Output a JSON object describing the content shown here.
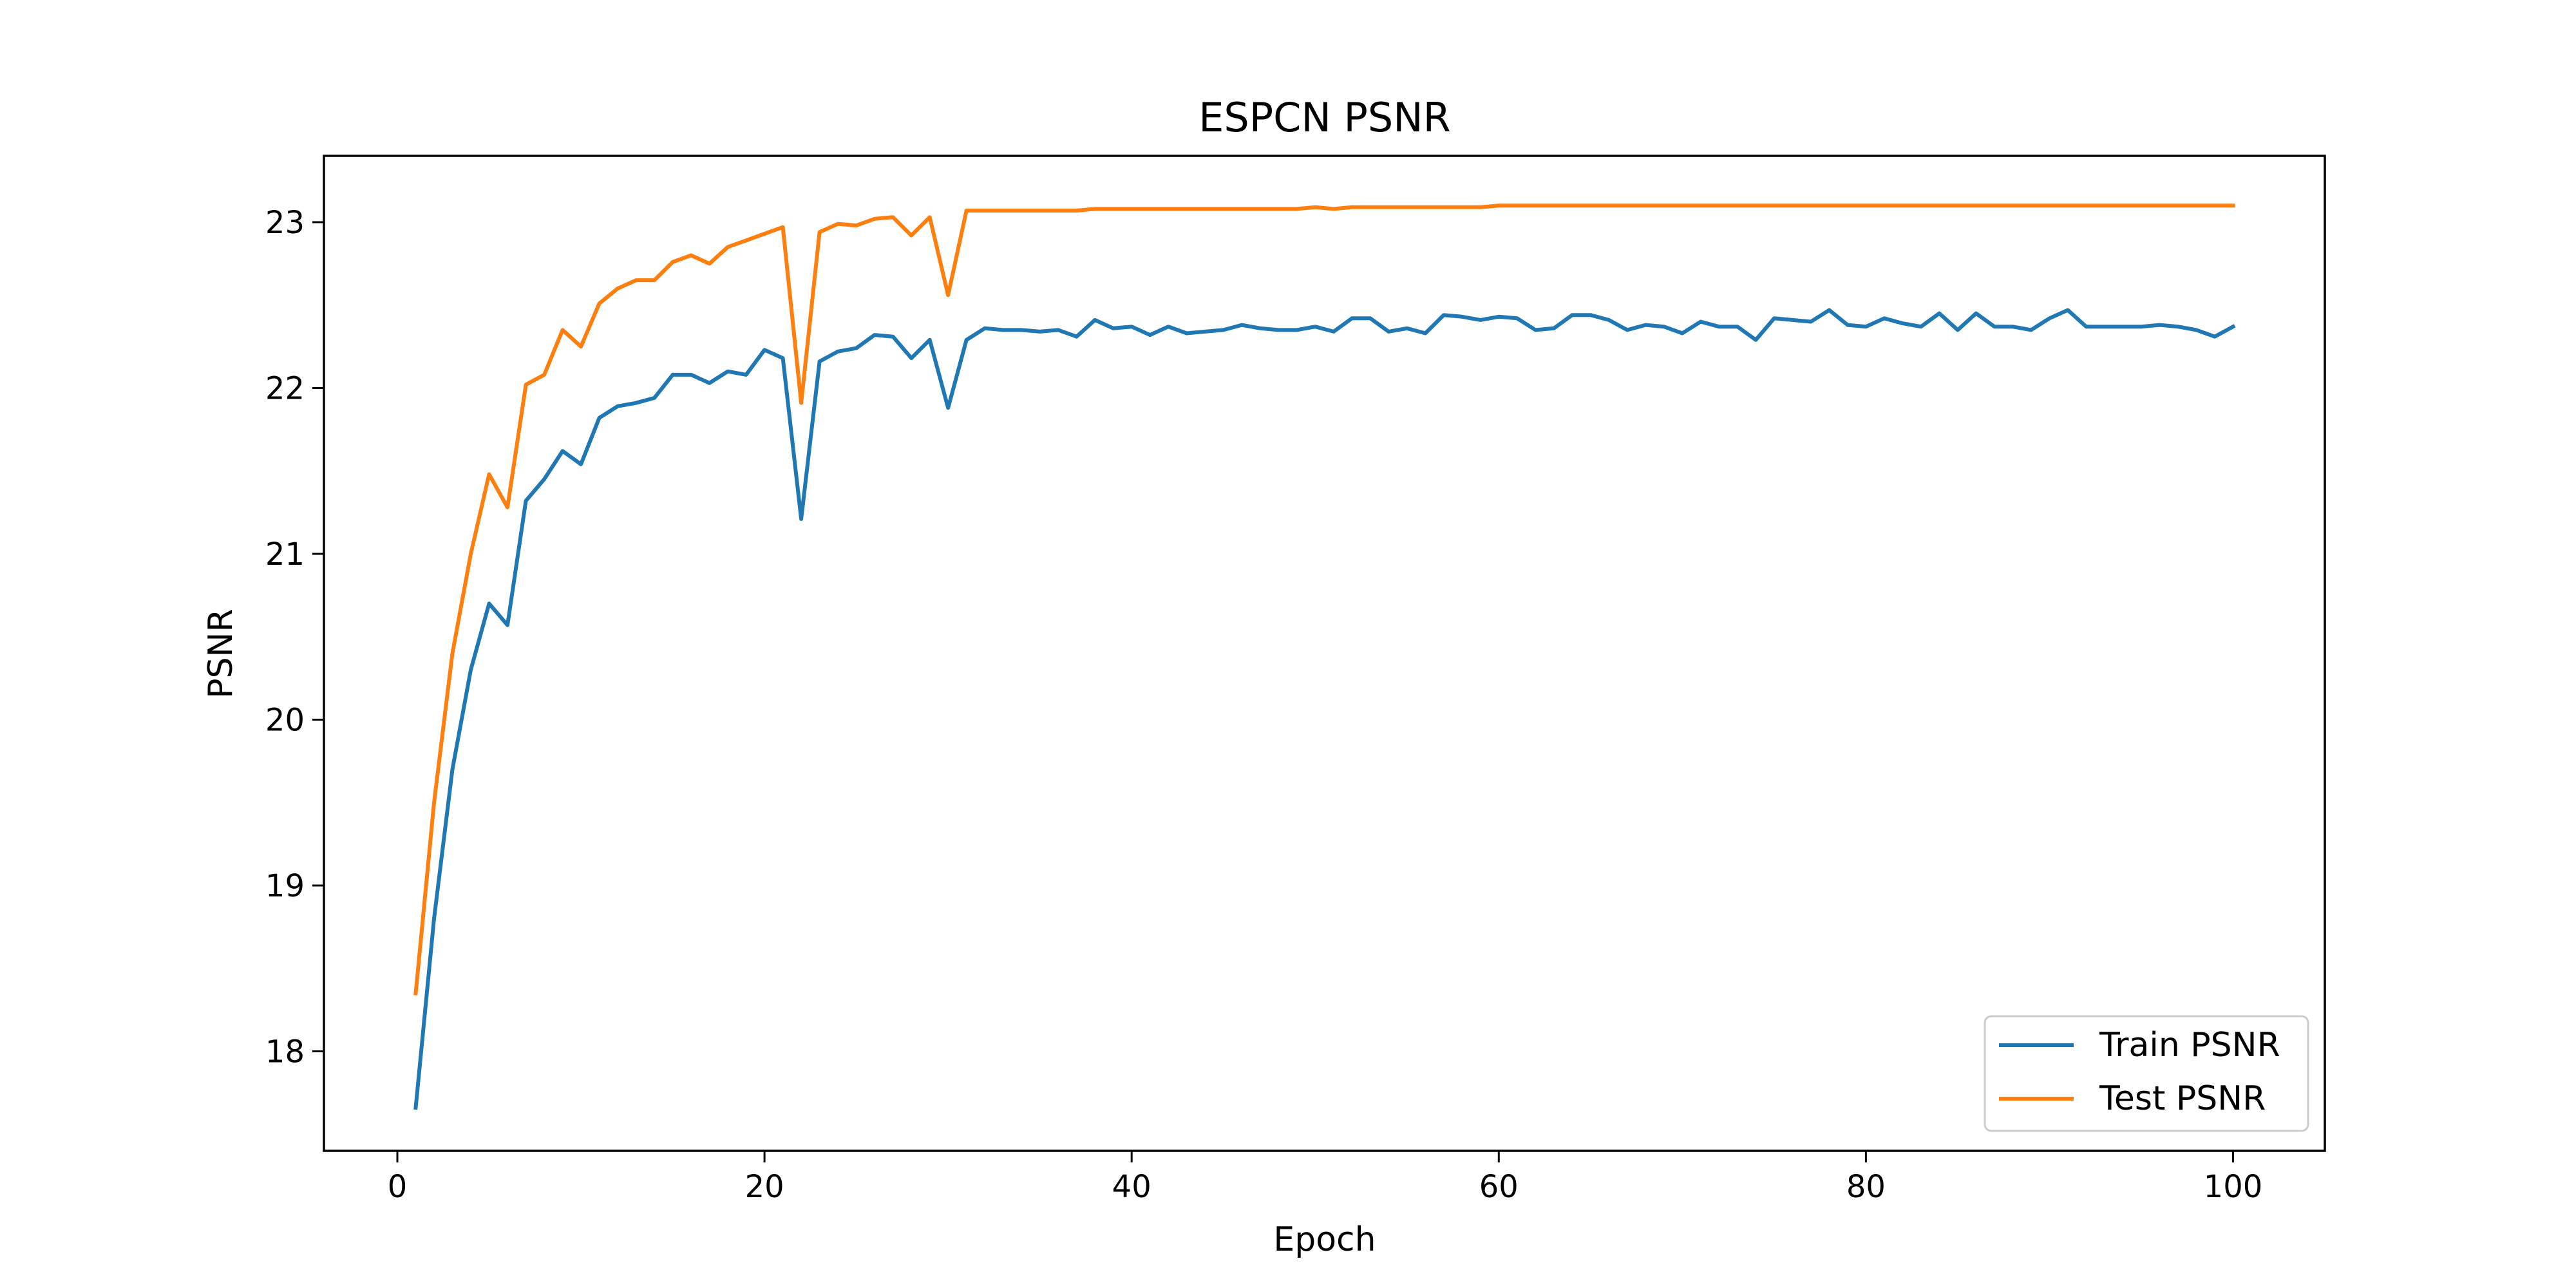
{
  "chart_data": {
    "type": "line",
    "title": "ESPCN PSNR",
    "xlabel": "Epoch",
    "ylabel": "PSNR",
    "xlim": [
      -4,
      105
    ],
    "ylim": [
      17.4,
      23.4
    ],
    "xticks": [
      0,
      20,
      40,
      60,
      80,
      100
    ],
    "yticks": [
      18,
      19,
      20,
      21,
      22,
      23
    ],
    "grid": false,
    "legend_position": "lower-right",
    "series": [
      {
        "name": "Train PSNR",
        "color": "#1f77b4",
        "x": [
          1,
          2,
          3,
          4,
          5,
          6,
          7,
          8,
          9,
          10,
          11,
          12,
          13,
          14,
          15,
          16,
          17,
          18,
          19,
          20,
          21,
          22,
          23,
          24,
          25,
          26,
          27,
          28,
          29,
          30,
          31,
          32,
          33,
          34,
          35,
          36,
          37,
          38,
          39,
          40,
          41,
          42,
          43,
          44,
          45,
          46,
          47,
          48,
          49,
          50,
          51,
          52,
          53,
          54,
          55,
          56,
          57,
          58,
          59,
          60,
          61,
          62,
          63,
          64,
          65,
          66,
          67,
          68,
          69,
          70,
          71,
          72,
          73,
          74,
          75,
          76,
          77,
          78,
          79,
          80,
          81,
          82,
          83,
          84,
          85,
          86,
          87,
          88,
          89,
          90,
          91,
          92,
          93,
          94,
          95,
          96,
          97,
          98,
          99,
          100
        ],
        "values": [
          17.66,
          18.8,
          19.7,
          20.3,
          20.7,
          20.57,
          21.32,
          21.45,
          21.62,
          21.54,
          21.82,
          21.89,
          21.91,
          21.94,
          22.08,
          22.08,
          22.03,
          22.1,
          22.08,
          22.23,
          22.18,
          21.21,
          22.16,
          22.22,
          22.24,
          22.32,
          22.31,
          22.18,
          22.29,
          21.88,
          22.29,
          22.36,
          22.35,
          22.35,
          22.34,
          22.35,
          22.31,
          22.41,
          22.36,
          22.37,
          22.32,
          22.37,
          22.33,
          22.34,
          22.35,
          22.38,
          22.36,
          22.35,
          22.35,
          22.37,
          22.34,
          22.42,
          22.42,
          22.34,
          22.36,
          22.33,
          22.44,
          22.43,
          22.41,
          22.43,
          22.42,
          22.35,
          22.36,
          22.44,
          22.44,
          22.41,
          22.35,
          22.38,
          22.37,
          22.33,
          22.4,
          22.37,
          22.37,
          22.29,
          22.42,
          22.41,
          22.4,
          22.47,
          22.38,
          22.37,
          22.42,
          22.39,
          22.37,
          22.45,
          22.35,
          22.45,
          22.37,
          22.37,
          22.35,
          22.42,
          22.47,
          22.37,
          22.37,
          22.37,
          22.37,
          22.38,
          22.37,
          22.35,
          22.31,
          22.37
        ]
      },
      {
        "name": "Test PSNR",
        "color": "#ff7f0e",
        "x": [
          1,
          2,
          3,
          4,
          5,
          6,
          7,
          8,
          9,
          10,
          11,
          12,
          13,
          14,
          15,
          16,
          17,
          18,
          19,
          20,
          21,
          22,
          23,
          24,
          25,
          26,
          27,
          28,
          29,
          30,
          31,
          32,
          33,
          34,
          35,
          36,
          37,
          38,
          39,
          40,
          41,
          42,
          43,
          44,
          45,
          46,
          47,
          48,
          49,
          50,
          51,
          52,
          53,
          54,
          55,
          56,
          57,
          58,
          59,
          60,
          61,
          62,
          63,
          64,
          65,
          66,
          67,
          68,
          69,
          70,
          71,
          72,
          73,
          74,
          75,
          76,
          77,
          78,
          79,
          80,
          81,
          82,
          83,
          84,
          85,
          86,
          87,
          88,
          89,
          90,
          91,
          92,
          93,
          94,
          95,
          96,
          97,
          98,
          99,
          100
        ],
        "values": [
          18.35,
          19.5,
          20.4,
          21.0,
          21.48,
          21.28,
          22.02,
          22.08,
          22.35,
          22.25,
          22.51,
          22.6,
          22.65,
          22.65,
          22.76,
          22.8,
          22.75,
          22.85,
          22.89,
          22.93,
          22.97,
          21.91,
          22.94,
          22.99,
          22.98,
          23.02,
          23.03,
          22.92,
          23.03,
          22.56,
          23.07,
          23.07,
          23.07,
          23.07,
          23.07,
          23.07,
          23.07,
          23.08,
          23.08,
          23.08,
          23.08,
          23.08,
          23.08,
          23.08,
          23.08,
          23.08,
          23.08,
          23.08,
          23.08,
          23.09,
          23.08,
          23.09,
          23.09,
          23.09,
          23.09,
          23.09,
          23.09,
          23.09,
          23.09,
          23.1,
          23.1,
          23.1,
          23.1,
          23.1,
          23.1,
          23.1,
          23.1,
          23.1,
          23.1,
          23.1,
          23.1,
          23.1,
          23.1,
          23.1,
          23.1,
          23.1,
          23.1,
          23.1,
          23.1,
          23.1,
          23.1,
          23.1,
          23.1,
          23.1,
          23.1,
          23.1,
          23.1,
          23.1,
          23.1,
          23.1,
          23.1,
          23.1,
          23.1,
          23.1,
          23.1,
          23.1,
          23.1,
          23.1,
          23.1,
          23.1
        ]
      }
    ]
  }
}
